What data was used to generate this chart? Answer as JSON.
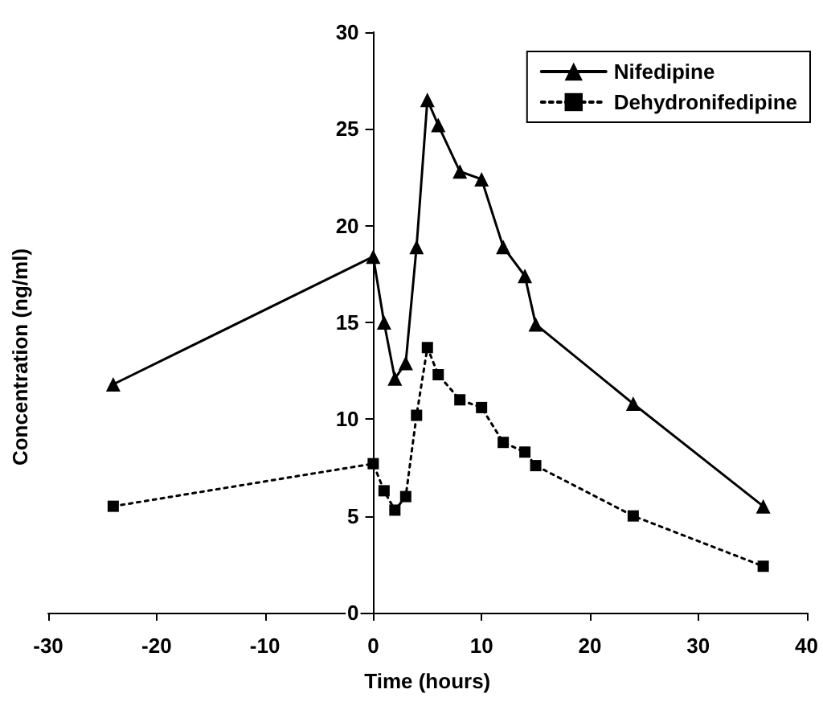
{
  "chart_data": {
    "type": "line",
    "xlabel": "Time (hours)",
    "ylabel": "Concentration (ng/ml)",
    "xlim": [
      -30,
      40
    ],
    "xticks": [
      -30,
      -20,
      -10,
      0,
      10,
      20,
      30,
      40
    ],
    "ylim": [
      0,
      30
    ],
    "yticks": [
      0,
      5,
      10,
      15,
      20,
      25,
      30
    ],
    "grid": false,
    "legend": "top right",
    "series": [
      {
        "name": "Nifedipine",
        "color": "#000000",
        "marker": "triangle",
        "line_style": "solid",
        "x": [
          -24,
          0,
          1,
          2,
          3,
          4,
          5,
          6,
          8,
          10,
          12,
          14,
          15,
          24,
          36
        ],
        "values": [
          11.8,
          18.4,
          15.0,
          12.1,
          12.9,
          18.9,
          26.5,
          25.2,
          22.8,
          22.4,
          18.9,
          17.4,
          14.9,
          10.8,
          5.5
        ]
      },
      {
        "name": "Dehydronifedipine",
        "color": "#000000",
        "marker": "square",
        "line_style": "dotted",
        "x": [
          -24,
          0,
          1,
          2,
          3,
          4,
          5,
          6,
          8,
          10,
          12,
          14,
          15,
          24,
          36
        ],
        "values": [
          5.5,
          7.7,
          6.3,
          5.3,
          6.0,
          10.2,
          13.7,
          12.3,
          11.0,
          10.6,
          8.8,
          8.3,
          7.6,
          5.0,
          2.4
        ]
      }
    ]
  }
}
